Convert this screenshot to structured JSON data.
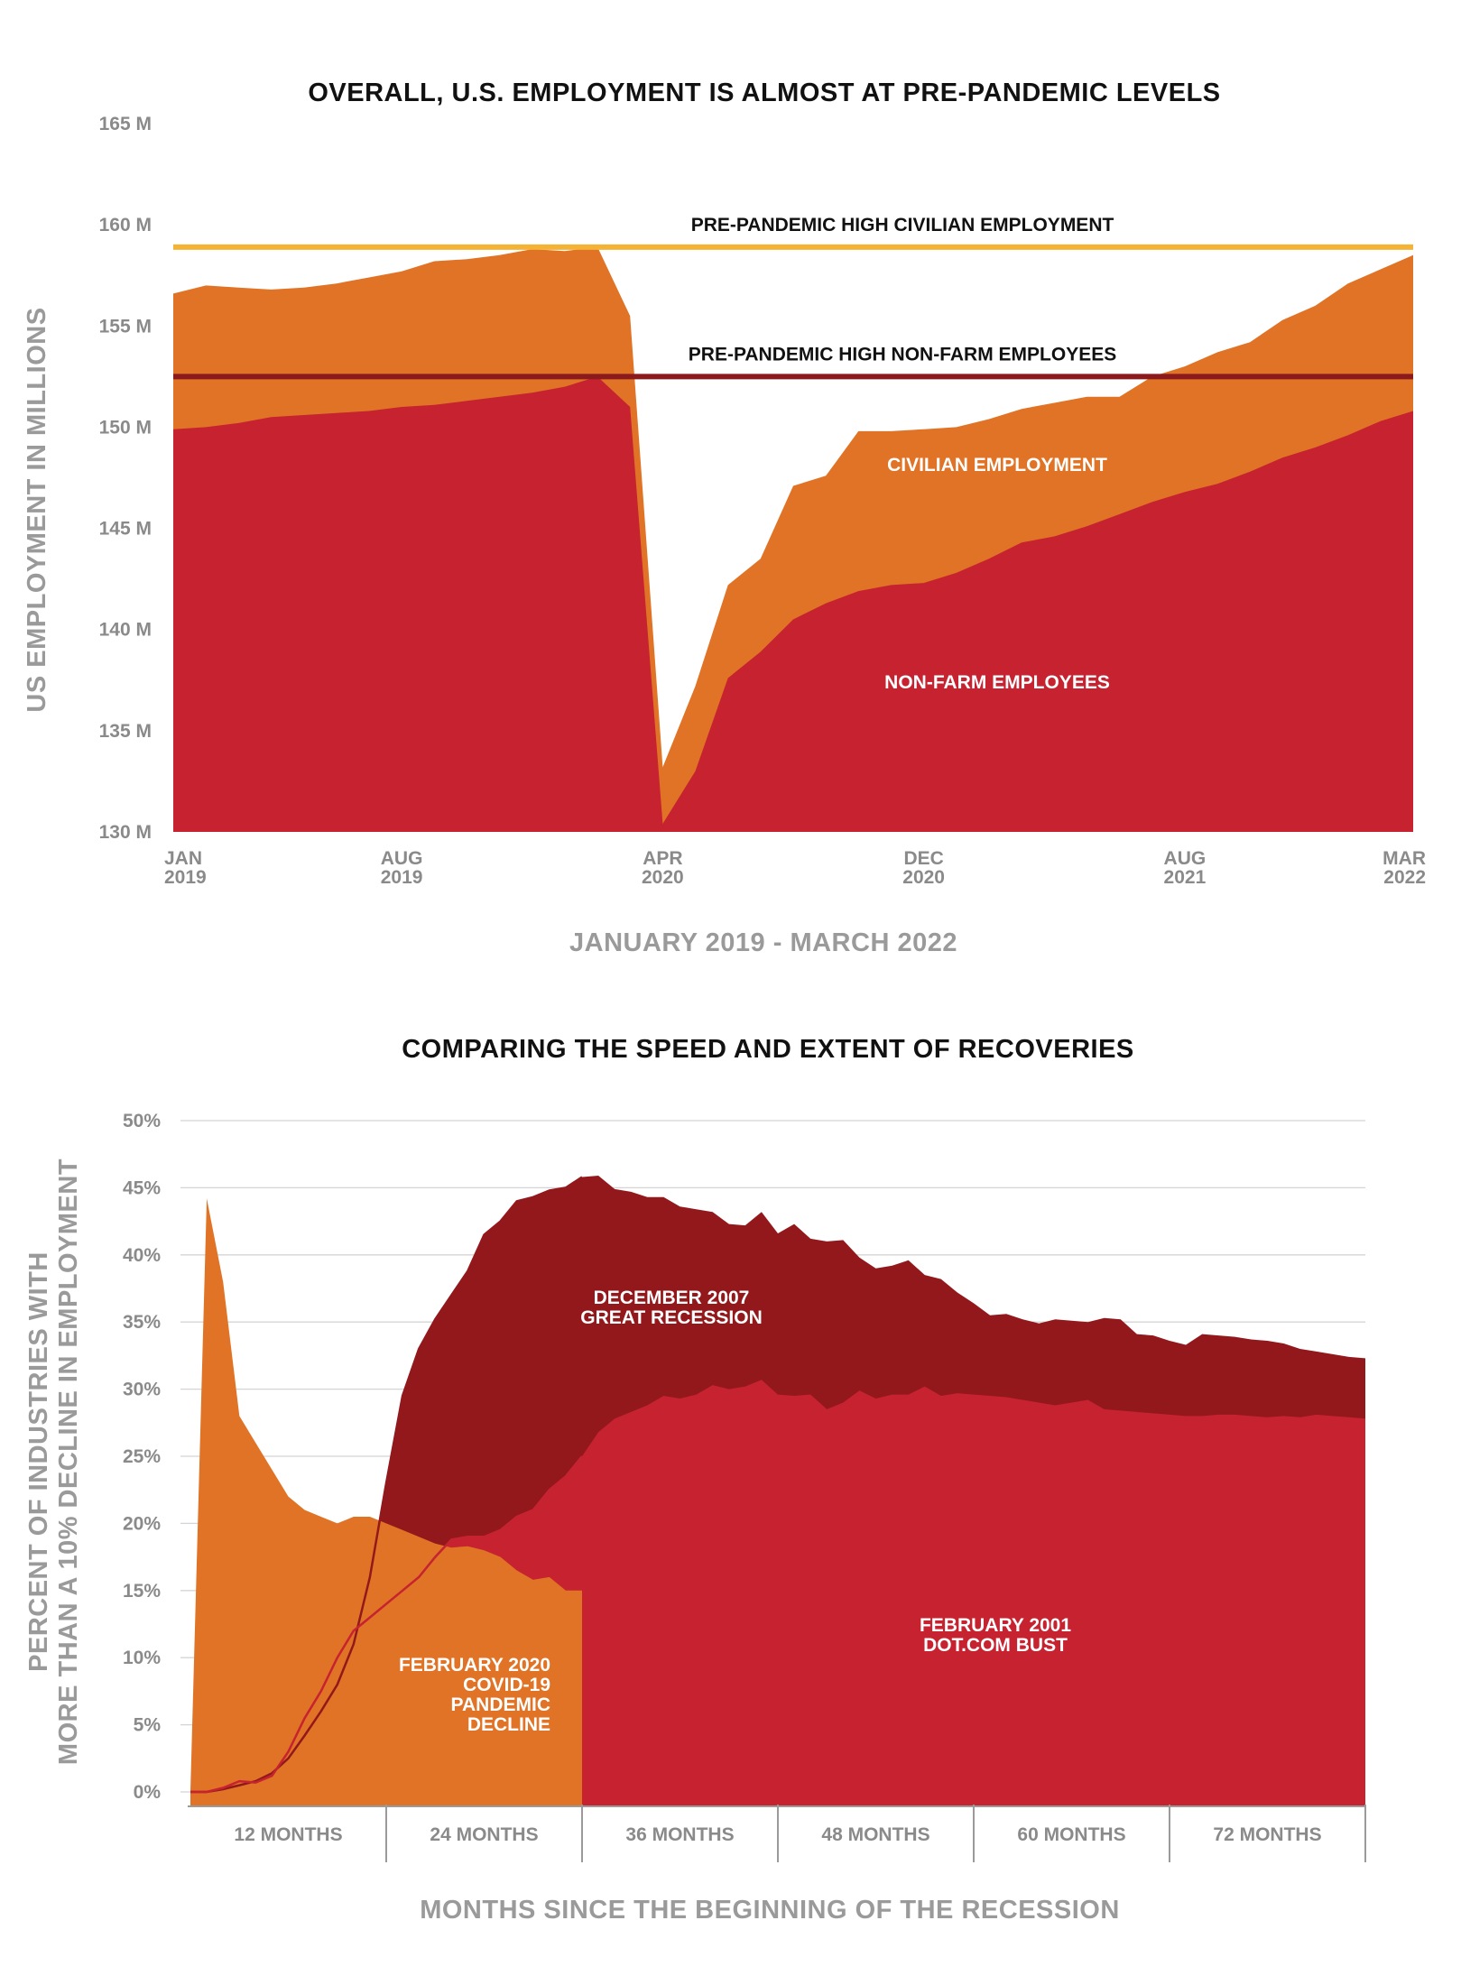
{
  "chart_data": [
    {
      "type": "area",
      "title": "OVERALL, U.S. EMPLOYMENT IS ALMOST AT PRE-PANDEMIC LEVELS",
      "ylabel": "US EMPLOYMENT IN MILLIONS",
      "xlabel": "JANUARY 2019 - MARCH 2022",
      "ylim": [
        130,
        165
      ],
      "yticks": [
        {
          "value": 165,
          "label": "165 M"
        },
        {
          "value": 160,
          "label": "160 M"
        },
        {
          "value": 155,
          "label": "155 M"
        },
        {
          "value": 150,
          "label": "150 M"
        },
        {
          "value": 145,
          "label": "145 M"
        },
        {
          "value": 140,
          "label": "140 M"
        },
        {
          "value": 135,
          "label": "135 M"
        },
        {
          "value": 130,
          "label": "130 M"
        }
      ],
      "xlim": [
        0,
        38
      ],
      "xticks": [
        {
          "index": 0,
          "line1": "JAN",
          "line2": "2019"
        },
        {
          "index": 7,
          "line1": "AUG",
          "line2": "2019"
        },
        {
          "index": 15,
          "line1": "APR",
          "line2": "2020"
        },
        {
          "index": 23,
          "line1": "DEC",
          "line2": "2020"
        },
        {
          "index": 31,
          "line1": "AUG",
          "line2": "2021"
        },
        {
          "index": 38,
          "line1": "MAR",
          "line2": "2022"
        }
      ],
      "months_from_jan_2019": [
        0,
        1,
        2,
        3,
        4,
        5,
        6,
        7,
        8,
        9,
        10,
        11,
        12,
        13,
        14,
        15,
        16,
        17,
        18,
        19,
        20,
        21,
        22,
        23,
        24,
        25,
        26,
        27,
        28,
        29,
        30,
        31,
        32,
        33,
        34,
        35,
        36,
        37,
        38
      ],
      "series": [
        {
          "name": "CIVILIAN EMPLOYMENT",
          "color": "#e07325",
          "values": [
            156.6,
            157.0,
            156.9,
            156.8,
            156.9,
            157.1,
            157.4,
            157.7,
            158.2,
            158.3,
            158.5,
            158.8,
            158.7,
            158.9,
            155.5,
            133.2,
            137.2,
            142.2,
            143.5,
            147.1,
            147.6,
            149.8,
            149.8,
            149.9,
            150.0,
            150.4,
            150.9,
            151.2,
            151.5,
            151.5,
            152.5,
            153.0,
            153.7,
            154.2,
            155.3,
            156.0,
            157.1,
            157.8,
            158.5
          ]
        },
        {
          "name": "NON-FARM EMPLOYEES",
          "color": "#c62230",
          "values": [
            149.9,
            150.0,
            150.2,
            150.5,
            150.6,
            150.7,
            150.8,
            151.0,
            151.1,
            151.3,
            151.5,
            151.7,
            152.0,
            152.5,
            151.0,
            130.4,
            133.0,
            137.6,
            138.9,
            140.5,
            141.3,
            141.9,
            142.2,
            142.3,
            142.8,
            143.5,
            144.3,
            144.6,
            145.1,
            145.7,
            146.3,
            146.8,
            147.2,
            147.8,
            148.5,
            149.0,
            149.6,
            150.3,
            150.8
          ]
        }
      ],
      "reference_lines": [
        {
          "label": "PRE-PANDEMIC HIGH CIVILIAN EMPLOYMENT",
          "value": 158.9,
          "color": "#f5b335"
        },
        {
          "label": "PRE-PANDEMIC HIGH NON-FARM EMPLOYEES",
          "value": 152.5,
          "color": "#8b1a1d"
        }
      ],
      "annotations": [
        {
          "text": "CIVILIAN EMPLOYMENT",
          "color": "#ffffff"
        },
        {
          "text": "NON-FARM EMPLOYEES",
          "color": "#ffffff"
        }
      ]
    },
    {
      "type": "area",
      "title": "COMPARING THE SPEED AND EXTENT OF RECOVERIES",
      "ylabel_lines": [
        "PERCENT OF INDUSTRIES WITH",
        "MORE THAN A 10% DECLINE IN EMPLOYMENT"
      ],
      "xlabel": "MONTHS SINCE THE BEGINNING OF THE RECESSION",
      "ylim": [
        0,
        50
      ],
      "yticks": [
        {
          "value": 50,
          "label": "50%"
        },
        {
          "value": 45,
          "label": "45%"
        },
        {
          "value": 40,
          "label": "40%"
        },
        {
          "value": 35,
          "label": "35%"
        },
        {
          "value": 30,
          "label": "30%"
        },
        {
          "value": 25,
          "label": "25%"
        },
        {
          "value": 20,
          "label": "20%"
        },
        {
          "value": 15,
          "label": "15%"
        },
        {
          "value": 10,
          "label": "10%"
        },
        {
          "value": 5,
          "label": "5%"
        },
        {
          "value": 0,
          "label": "0%"
        }
      ],
      "xlim": [
        0,
        72
      ],
      "x_bins": [
        "12 MONTHS",
        "24 MONTHS",
        "36 MONTHS",
        "48 MONTHS",
        "60 MONTHS",
        "72 MONTHS"
      ],
      "series": [
        {
          "name": "DECEMBER 2007 GREAT RECESSION",
          "color": "#92181c",
          "x": [
            0,
            1,
            2,
            3,
            4,
            5,
            6,
            7,
            8,
            9,
            10,
            11,
            12,
            13,
            14,
            15,
            16,
            17,
            18,
            19,
            20,
            21,
            22,
            23,
            24,
            25,
            26,
            27,
            28,
            29,
            30,
            31,
            32,
            33,
            34,
            35,
            36,
            37,
            38,
            39,
            40,
            41,
            42,
            43,
            44,
            45,
            46,
            47,
            48,
            49,
            50,
            51,
            52,
            53,
            54,
            55,
            56,
            57,
            58,
            59,
            60,
            61,
            62,
            63,
            64,
            65,
            66,
            67,
            68,
            69,
            70,
            71,
            72
          ],
          "values": [
            0,
            0,
            0.2,
            0.5,
            0.8,
            1.4,
            2.5,
            4.2,
            6.0,
            8.0,
            11.0,
            16.0,
            23.0,
            29.5,
            33.0,
            35.2,
            37.0,
            38.8,
            41.5,
            42.5,
            44.0,
            44.3,
            44.8,
            45.0,
            45.8,
            45.9,
            44.9,
            44.7,
            44.3,
            44.3,
            43.6,
            43.4,
            43.2,
            42.3,
            42.2,
            43.2,
            41.6,
            42.3,
            41.2,
            41.0,
            41.1,
            39.8,
            39.0,
            39.2,
            39.6,
            38.5,
            38.2,
            37.2,
            36.4,
            35.5,
            35.6,
            35.2,
            34.9,
            35.2,
            35.1,
            35.0,
            35.3,
            35.2,
            34.1,
            34.0,
            33.6,
            33.3,
            34.1,
            34.0,
            33.9,
            33.7,
            33.6,
            33.4,
            33.0,
            32.8,
            32.6,
            32.4,
            32.3
          ]
        },
        {
          "name": "FEBRUARY 2001 DOT.COM BUST",
          "color": "#c62230",
          "x": [
            0,
            1,
            2,
            3,
            4,
            5,
            6,
            7,
            8,
            9,
            10,
            11,
            12,
            13,
            14,
            15,
            16,
            17,
            18,
            19,
            20,
            21,
            22,
            23,
            24,
            25,
            26,
            27,
            28,
            29,
            30,
            31,
            32,
            33,
            34,
            35,
            36,
            37,
            38,
            39,
            40,
            41,
            42,
            43,
            44,
            45,
            46,
            47,
            48,
            49,
            50,
            51,
            52,
            53,
            54,
            55,
            56,
            57,
            58,
            59,
            60,
            61,
            62,
            63,
            64,
            65,
            66,
            67,
            68,
            69,
            70,
            71,
            72
          ],
          "values": [
            0,
            0,
            0.3,
            0.8,
            0.7,
            1.2,
            3.0,
            5.5,
            7.5,
            10.0,
            12.0,
            13.0,
            14.0,
            15.0,
            16.0,
            17.5,
            18.8,
            19.0,
            19.0,
            19.5,
            20.5,
            21.0,
            22.5,
            23.5,
            25.0,
            26.8,
            27.8,
            28.3,
            28.8,
            29.5,
            29.3,
            29.6,
            30.3,
            30.0,
            30.2,
            30.7,
            29.6,
            29.5,
            29.6,
            28.5,
            29.0,
            29.9,
            29.3,
            29.6,
            29.6,
            30.2,
            29.5,
            29.7,
            29.6,
            29.5,
            29.4,
            29.2,
            29.0,
            28.8,
            29.0,
            29.2,
            28.5,
            28.4,
            28.3,
            28.2,
            28.1,
            28.0,
            28.0,
            28.1,
            28.1,
            28.0,
            27.9,
            28.0,
            27.9,
            28.1,
            28.0,
            27.9,
            27.8
          ]
        },
        {
          "name": "FEBRUARY 2020 COVID-19 PANDEMIC DECLINE",
          "color": "#e07325",
          "x": [
            0,
            1,
            2,
            3,
            4,
            5,
            6,
            7,
            8,
            9,
            10,
            11,
            12,
            13,
            14,
            15,
            16,
            17,
            18,
            19,
            20,
            21,
            22,
            23,
            24
          ],
          "values": [
            0,
            44.2,
            38.0,
            28.0,
            26.0,
            24.0,
            22.0,
            21.0,
            20.5,
            20.0,
            20.5,
            20.5,
            20.0,
            19.5,
            19.0,
            18.5,
            18.2,
            18.3,
            18.0,
            17.5,
            16.5,
            15.8,
            16.0,
            15.0,
            15.0
          ]
        }
      ],
      "annotations": [
        {
          "lines": [
            "DECEMBER 2007",
            "GREAT RECESSION"
          ],
          "color": "#ffffff"
        },
        {
          "lines": [
            "FEBRUARY 2001",
            "DOT.COM BUST"
          ],
          "color": "#ffffff"
        },
        {
          "lines": [
            "FEBRUARY 2020",
            "COVID-19",
            "PANDEMIC",
            "DECLINE"
          ],
          "color": "#ffffff"
        }
      ]
    }
  ]
}
